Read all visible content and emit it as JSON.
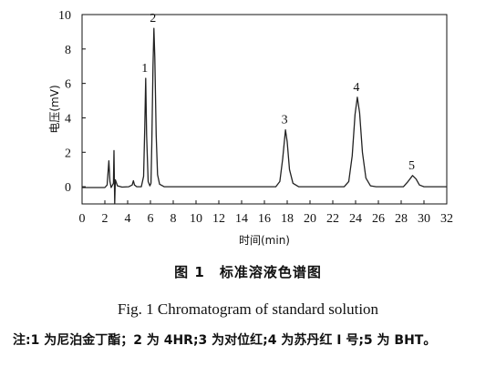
{
  "chart_data": {
    "type": "line",
    "title": "",
    "xlabel": "时间(min)",
    "ylabel": "电压(mV)",
    "xlim": [
      0,
      32
    ],
    "ylim": [
      -1,
      10
    ],
    "x_ticks": [
      0,
      2,
      4,
      6,
      8,
      10,
      12,
      14,
      16,
      18,
      20,
      22,
      24,
      26,
      28,
      30,
      32
    ],
    "y_ticks": [
      0,
      2,
      4,
      6,
      8,
      10
    ],
    "grid": false,
    "series": [
      {
        "color": "#222222",
        "points": [
          [
            0,
            -0.05
          ],
          [
            2.0,
            -0.05
          ],
          [
            2.2,
            0.1
          ],
          [
            2.35,
            1.5
          ],
          [
            2.45,
            0.3
          ],
          [
            2.55,
            -0.05
          ],
          [
            2.75,
            0.2
          ],
          [
            2.8,
            2.1
          ],
          [
            2.86,
            -1.0
          ],
          [
            2.92,
            0.4
          ],
          [
            3.1,
            0.05
          ],
          [
            3.5,
            -0.02
          ],
          [
            4.1,
            0.0
          ],
          [
            4.4,
            0.1
          ],
          [
            4.5,
            0.35
          ],
          [
            4.6,
            0.1
          ],
          [
            4.8,
            0.0
          ],
          [
            5.2,
            0.0
          ],
          [
            5.4,
            0.6
          ],
          [
            5.5,
            3.5
          ],
          [
            5.58,
            6.3
          ],
          [
            5.66,
            3.0
          ],
          [
            5.8,
            0.3
          ],
          [
            5.95,
            0.05
          ],
          [
            6.05,
            0.2
          ],
          [
            6.12,
            2.5
          ],
          [
            6.22,
            7.0
          ],
          [
            6.3,
            9.2
          ],
          [
            6.38,
            7.5
          ],
          [
            6.5,
            3.0
          ],
          [
            6.62,
            0.7
          ],
          [
            6.8,
            0.15
          ],
          [
            7.2,
            0.0
          ],
          [
            17.0,
            0.0
          ],
          [
            17.35,
            0.3
          ],
          [
            17.6,
            1.6
          ],
          [
            17.85,
            3.3
          ],
          [
            18.0,
            2.6
          ],
          [
            18.2,
            1.0
          ],
          [
            18.5,
            0.2
          ],
          [
            19.0,
            0.0
          ],
          [
            23.0,
            0.0
          ],
          [
            23.4,
            0.3
          ],
          [
            23.7,
            1.8
          ],
          [
            23.95,
            4.2
          ],
          [
            24.15,
            5.2
          ],
          [
            24.35,
            4.3
          ],
          [
            24.6,
            2.0
          ],
          [
            24.9,
            0.5
          ],
          [
            25.3,
            0.05
          ],
          [
            25.8,
            0.0
          ],
          [
            28.2,
            0.0
          ],
          [
            28.6,
            0.3
          ],
          [
            29.0,
            0.65
          ],
          [
            29.3,
            0.45
          ],
          [
            29.6,
            0.1
          ],
          [
            30.0,
            0.0
          ],
          [
            32.0,
            0.0
          ]
        ]
      }
    ],
    "peak_labels": [
      {
        "label": "1",
        "x": 5.58,
        "y": 6.3
      },
      {
        "label": "2",
        "x": 6.3,
        "y": 9.2
      },
      {
        "label": "3",
        "x": 17.85,
        "y": 3.3
      },
      {
        "label": "4",
        "x": 24.15,
        "y": 5.2
      },
      {
        "label": "5",
        "x": 29.0,
        "y": 0.65
      }
    ]
  },
  "caption": {
    "cn": "图 1　标准溶液色谱图",
    "en": "Fig. 1 Chromatogram of standard solution"
  },
  "note": "注:1 为尼泊金丁酯；2 为 4HR;3 为对位红;4 为苏丹红 I 号;5 为 BHT。"
}
